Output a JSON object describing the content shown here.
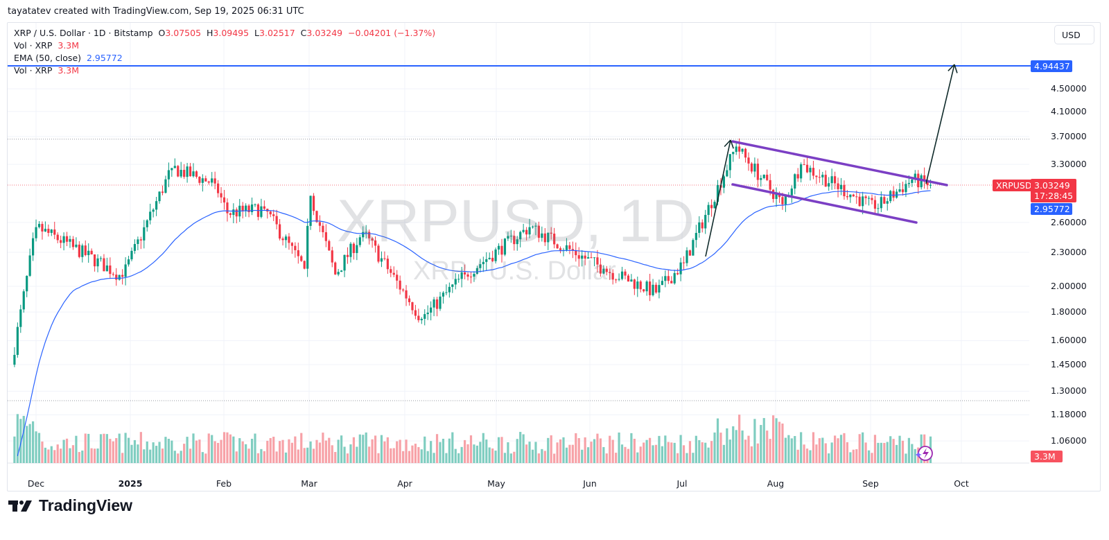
{
  "credit": "tayatatev created with TradingView.com, Sep 19, 2025 06:31 UTC",
  "legend": {
    "symbol": "XRP / U.S. Dollar · 1D · Bitstamp",
    "open_label": "O",
    "open": "3.07505",
    "high_label": "H",
    "high": "3.09495",
    "low_label": "L",
    "low": "3.02517",
    "close_label": "C",
    "close": "3.03249",
    "change": "−0.04201 (−1.37%)",
    "vol_label": "Vol · XRP",
    "vol_value": "3.3M",
    "ema_label": "EMA (50, close)",
    "ema_value": "2.95772",
    "vol2_label": "Vol · XRP",
    "vol2_value": "3.3M"
  },
  "currency_button": "USD",
  "watermark": {
    "main": "XRPUSD, 1D",
    "sub": "XRP / U.S. Dollar"
  },
  "price_axis": {
    "ticks": [
      {
        "label": "4.50000",
        "value": 4.5
      },
      {
        "label": "4.10000",
        "value": 4.1
      },
      {
        "label": "3.70000",
        "value": 3.7
      },
      {
        "label": "3.30000",
        "value": 3.3
      },
      {
        "label": "2.60000",
        "value": 2.6
      },
      {
        "label": "2.30000",
        "value": 2.3
      },
      {
        "label": "2.00000",
        "value": 2.0
      },
      {
        "label": "1.80000",
        "value": 1.8
      },
      {
        "label": "1.60000",
        "value": 1.6
      },
      {
        "label": "1.45000",
        "value": 1.45
      },
      {
        "label": "1.30000",
        "value": 1.3
      },
      {
        "label": "1.18000",
        "value": 1.18
      },
      {
        "label": "1.06000",
        "value": 1.06
      }
    ],
    "target_tag": "4.94437",
    "symbol_tag": "XRPUSD",
    "price_tag": "3.03249",
    "countdown": "17:28:45",
    "ema_tag": "2.95772",
    "volume_tag": "3.3M"
  },
  "time_axis": [
    {
      "label": "Dec",
      "x": 52,
      "bold": false
    },
    {
      "label": "2025",
      "x": 188,
      "bold": true
    },
    {
      "label": "Feb",
      "x": 323,
      "bold": false
    },
    {
      "label": "Mar",
      "x": 446,
      "bold": false
    },
    {
      "label": "Apr",
      "x": 584,
      "bold": false
    },
    {
      "label": "May",
      "x": 716,
      "bold": false
    },
    {
      "label": "Jun",
      "x": 851,
      "bold": false
    },
    {
      "label": "Jul",
      "x": 984,
      "bold": false
    },
    {
      "label": "Aug",
      "x": 1119,
      "bold": false
    },
    {
      "label": "Sep",
      "x": 1256,
      "bold": false
    },
    {
      "label": "Oct",
      "x": 1387,
      "bold": false
    }
  ],
  "colors": {
    "up": "#089981",
    "down": "#f23645",
    "vol_up": "#7fcdc0",
    "vol_down": "#f7a1a7",
    "ema": "#2962ff",
    "channel": "#7b3fc4",
    "arrow": "#0f2a2a",
    "target_line": "#2962ff",
    "grid": "#f0f3fa"
  },
  "logo_text": "TradingView",
  "chart_data": {
    "type": "candlestick",
    "title": "XRP / U.S. Dollar · 1D · Bitstamp",
    "scale": "log",
    "ylim": [
      1.0,
      5.2
    ],
    "x_range": [
      "2024-11-24",
      "2025-10-10"
    ],
    "last_close": 3.03249,
    "ema50_last": 2.95772,
    "target_level": 4.94437,
    "key_points": [
      {
        "date": "2024-11-25",
        "close": 1.45
      },
      {
        "date": "2024-12-03",
        "close": 2.55
      },
      {
        "date": "2024-12-15",
        "close": 2.35
      },
      {
        "date": "2024-12-31",
        "close": 2.08
      },
      {
        "date": "2025-01-16",
        "close": 3.25
      },
      {
        "date": "2025-01-30",
        "close": 3.05
      },
      {
        "date": "2025-02-03",
        "close": 2.7
      },
      {
        "date": "2025-02-15",
        "close": 2.75
      },
      {
        "date": "2025-02-28",
        "close": 2.15
      },
      {
        "date": "2025-03-02",
        "close": 2.9
      },
      {
        "date": "2025-03-10",
        "close": 2.1
      },
      {
        "date": "2025-03-19",
        "close": 2.5
      },
      {
        "date": "2025-04-07",
        "close": 1.75
      },
      {
        "date": "2025-04-21",
        "close": 2.1
      },
      {
        "date": "2025-05-12",
        "close": 2.55
      },
      {
        "date": "2025-06-05",
        "close": 2.15
      },
      {
        "date": "2025-06-22",
        "close": 1.95
      },
      {
        "date": "2025-07-01",
        "close": 2.2
      },
      {
        "date": "2025-07-18",
        "close": 3.55
      },
      {
        "date": "2025-08-02",
        "close": 2.8
      },
      {
        "date": "2025-08-08",
        "close": 3.3
      },
      {
        "date": "2025-09-01",
        "close": 2.75
      },
      {
        "date": "2025-09-13",
        "close": 3.1
      },
      {
        "date": "2025-09-19",
        "close": 3.03249
      }
    ],
    "annotations": [
      {
        "type": "descending_channel",
        "upper": [
          [
            "2025-07-18",
            3.66
          ],
          [
            "2025-09-21",
            3.04
          ]
        ],
        "lower": [
          [
            "2025-07-18",
            2.98
          ],
          [
            "2025-09-16",
            2.58
          ]
        ]
      },
      {
        "type": "arrow",
        "label": "flagpole",
        "from": [
          "2025-07-02",
          2.25
        ],
        "to": [
          "2025-07-18",
          3.66
        ]
      },
      {
        "type": "arrow",
        "label": "projected target",
        "from": [
          "2025-09-19",
          3.07
        ],
        "to": [
          "2025-09-27",
          4.94437
        ]
      },
      {
        "type": "hline",
        "value": 4.94437,
        "color": "#2962ff"
      },
      {
        "type": "hline_dotted",
        "value": 3.66
      },
      {
        "type": "hline_dotted",
        "value": 1.26
      }
    ],
    "volume_last": "3.3M"
  }
}
